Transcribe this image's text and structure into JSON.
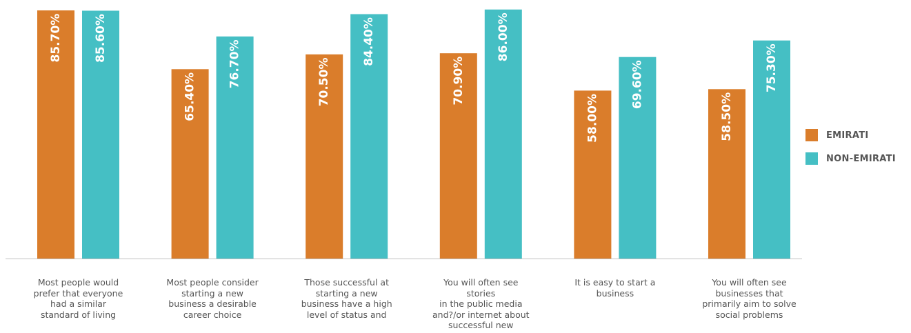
{
  "chart_data": {
    "type": "bar",
    "categories": [
      [
        "Most people would",
        "prefer that everyone",
        "had a similar",
        "standard of living"
      ],
      [
        "Most people consider",
        "starting a new",
        "business a desirable",
        "career choice"
      ],
      [
        "Those successful at",
        "starting a new",
        "business have a high",
        "level of status and"
      ],
      [
        "You will often see stories",
        "in the public media",
        "and?/or internet about",
        "successful new"
      ],
      [
        "It is easy to start a",
        "business"
      ],
      [
        "You will often see",
        "businesses that",
        "primarily aim to solve",
        "social problems"
      ]
    ],
    "series": [
      {
        "name": "EMIRATI",
        "color": "#DA7D2B",
        "values": [
          85.7,
          65.4,
          70.5,
          70.9,
          58.0,
          58.5
        ],
        "labels": [
          "85.70%",
          "65.40%",
          "70.50%",
          "70.90%",
          "58.00%",
          "58.50%"
        ]
      },
      {
        "name": "NON-EMIRATI",
        "color": "#45BFC4",
        "values": [
          85.6,
          76.7,
          84.4,
          86.0,
          69.6,
          75.3
        ],
        "labels": [
          "85.60%",
          "76.70%",
          "84.40%",
          "86.00%",
          "69.60%",
          "75.30%"
        ]
      }
    ],
    "legend_position": "right",
    "grid": false,
    "axis_color": "#BFBFBF"
  }
}
